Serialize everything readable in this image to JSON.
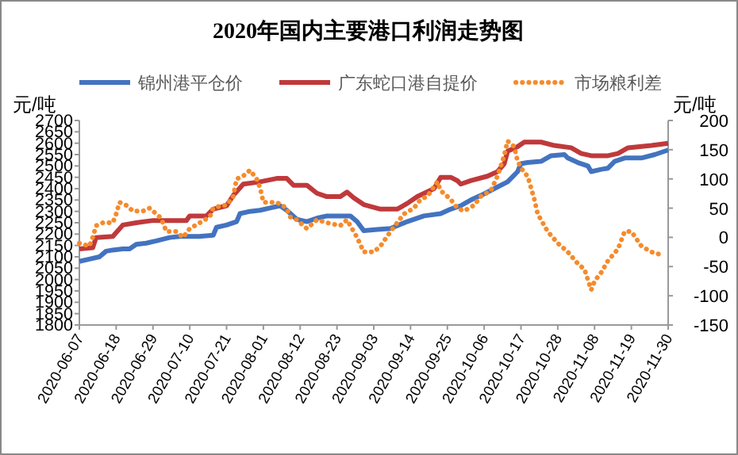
{
  "chart_data": {
    "type": "line",
    "title": "2020年国内主要港口利润走势图",
    "ylabel": "元/吨",
    "y2label": "元/吨",
    "legend": "top",
    "grid": false,
    "xlim": [
      "2020-06-07",
      "2020-11-30"
    ],
    "xticks": [
      "2020-06-07",
      "2020-06-18",
      "2020-06-29",
      "2020-07-10",
      "2020-07-21",
      "2020-08-01",
      "2020-08-12",
      "2020-08-23",
      "2020-09-03",
      "2020-09-14",
      "2020-09-25",
      "2020-10-06",
      "2020-10-17",
      "2020-10-28",
      "2020-11-08",
      "2020-11-19",
      "2020-11-30"
    ],
    "ylim": [
      1800,
      2700
    ],
    "yticks": [
      1800,
      1850,
      1900,
      1950,
      2000,
      2050,
      2100,
      2150,
      2200,
      2250,
      2300,
      2350,
      2400,
      2450,
      2500,
      2550,
      2600,
      2650,
      2700
    ],
    "y2lim": [
      -150,
      200
    ],
    "y2ticks": [
      -150,
      -100,
      -50,
      0,
      50,
      100,
      150,
      200
    ],
    "series": [
      {
        "name": "锦州港平仓价",
        "color": "#4373c0",
        "line_style": "solid",
        "x": [
          "2020-06-07",
          "2020-06-10",
          "2020-06-13",
          "2020-06-15",
          "2020-06-17",
          "2020-06-20",
          "2020-06-22",
          "2020-06-24",
          "2020-06-27",
          "2020-06-30",
          "2020-07-04",
          "2020-07-07",
          "2020-07-13",
          "2020-07-17",
          "2020-07-18",
          "2020-07-21",
          "2020-07-24",
          "2020-07-25",
          "2020-07-28",
          "2020-07-31",
          "2020-08-03",
          "2020-08-06",
          "2020-08-08",
          "2020-08-11",
          "2020-08-14",
          "2020-08-17",
          "2020-08-20",
          "2020-08-24",
          "2020-08-27",
          "2020-08-29",
          "2020-08-31",
          "2020-09-04",
          "2020-09-08",
          "2020-09-13",
          "2020-09-18",
          "2020-09-23",
          "2020-09-26",
          "2020-09-29",
          "2020-10-02",
          "2020-10-05",
          "2020-10-09",
          "2020-10-13",
          "2020-10-16",
          "2020-10-17",
          "2020-10-19",
          "2020-10-23",
          "2020-10-26",
          "2020-10-30",
          "2020-10-31",
          "2020-11-03",
          "2020-11-06",
          "2020-11-07",
          "2020-11-10",
          "2020-11-12",
          "2020-11-14",
          "2020-11-17",
          "2020-11-22",
          "2020-11-26",
          "2020-11-30"
        ],
        "values": [
          2080,
          2090,
          2100,
          2125,
          2130,
          2135,
          2135,
          2155,
          2160,
          2170,
          2185,
          2190,
          2190,
          2195,
          2230,
          2240,
          2255,
          2290,
          2300,
          2305,
          2315,
          2325,
          2305,
          2265,
          2255,
          2270,
          2280,
          2280,
          2280,
          2255,
          2215,
          2220,
          2225,
          2255,
          2280,
          2290,
          2310,
          2325,
          2350,
          2370,
          2400,
          2430,
          2475,
          2510,
          2515,
          2520,
          2545,
          2550,
          2535,
          2515,
          2500,
          2475,
          2485,
          2490,
          2520,
          2535,
          2535,
          2550,
          2570
        ]
      },
      {
        "name": "广东蛇口港自提价",
        "color": "#c0393b",
        "line_style": "solid",
        "x": [
          "2020-06-07",
          "2020-06-11",
          "2020-06-12",
          "2020-06-17",
          "2020-06-20",
          "2020-06-24",
          "2020-06-29",
          "2020-07-04",
          "2020-07-09",
          "2020-07-10",
          "2020-07-15",
          "2020-07-17",
          "2020-07-21",
          "2020-07-23",
          "2020-07-26",
          "2020-07-31",
          "2020-08-05",
          "2020-08-08",
          "2020-08-10",
          "2020-08-14",
          "2020-08-17",
          "2020-08-20",
          "2020-08-24",
          "2020-08-26",
          "2020-08-28",
          "2020-08-31",
          "2020-09-05",
          "2020-09-10",
          "2020-09-13",
          "2020-09-16",
          "2020-09-21",
          "2020-09-23",
          "2020-09-26",
          "2020-09-28",
          "2020-09-29",
          "2020-10-02",
          "2020-10-07",
          "2020-10-10",
          "2020-10-12",
          "2020-10-13",
          "2020-10-16",
          "2020-10-18",
          "2020-10-23",
          "2020-10-27",
          "2020-11-01",
          "2020-11-04",
          "2020-11-07",
          "2020-11-12",
          "2020-11-15",
          "2020-11-18",
          "2020-11-25",
          "2020-11-30"
        ],
        "values": [
          2135,
          2140,
          2185,
          2190,
          2240,
          2250,
          2260,
          2260,
          2260,
          2280,
          2280,
          2310,
          2325,
          2370,
          2420,
          2430,
          2445,
          2445,
          2415,
          2415,
          2380,
          2365,
          2365,
          2385,
          2360,
          2330,
          2310,
          2310,
          2335,
          2365,
          2400,
          2450,
          2450,
          2435,
          2420,
          2435,
          2455,
          2475,
          2510,
          2565,
          2585,
          2605,
          2605,
          2590,
          2580,
          2555,
          2545,
          2545,
          2555,
          2580,
          2590,
          2600
        ]
      },
      {
        "name": "市场粮利差",
        "color": "#f58b2c",
        "line_style": "dotted",
        "axis": "y2",
        "x": [
          "2020-06-07",
          "2020-06-10",
          "2020-06-11",
          "2020-06-12",
          "2020-06-14",
          "2020-06-17",
          "2020-06-18",
          "2020-06-19",
          "2020-06-21",
          "2020-06-23",
          "2020-06-26",
          "2020-06-28",
          "2020-07-01",
          "2020-07-02",
          "2020-07-03",
          "2020-07-06",
          "2020-07-08",
          "2020-07-10",
          "2020-07-13",
          "2020-07-16",
          "2020-07-17",
          "2020-07-20",
          "2020-07-21",
          "2020-07-23",
          "2020-07-24",
          "2020-07-26",
          "2020-07-28",
          "2020-07-30",
          "2020-07-31",
          "2020-08-01",
          "2020-08-05",
          "2020-08-08",
          "2020-08-09",
          "2020-08-11",
          "2020-08-14",
          "2020-08-17",
          "2020-08-20",
          "2020-08-24",
          "2020-08-26",
          "2020-08-27",
          "2020-08-29",
          "2020-08-31",
          "2020-09-03",
          "2020-09-05",
          "2020-09-08",
          "2020-09-10",
          "2020-09-12",
          "2020-09-15",
          "2020-09-17",
          "2020-09-19",
          "2020-09-22",
          "2020-09-23",
          "2020-09-25",
          "2020-09-26",
          "2020-09-28",
          "2020-09-30",
          "2020-10-03",
          "2020-10-05",
          "2020-10-08",
          "2020-10-10",
          "2020-10-12",
          "2020-10-13",
          "2020-10-15",
          "2020-10-16",
          "2020-10-18",
          "2020-10-19",
          "2020-10-21",
          "2020-10-22",
          "2020-10-25",
          "2020-10-28",
          "2020-10-31",
          "2020-11-03",
          "2020-11-05",
          "2020-11-07",
          "2020-11-08",
          "2020-11-10",
          "2020-11-12",
          "2020-11-15",
          "2020-11-17",
          "2020-11-19",
          "2020-11-22",
          "2020-11-25",
          "2020-11-28"
        ],
        "values": [
          -10,
          -15,
          0,
          20,
          25,
          25,
          40,
          60,
          55,
          45,
          45,
          50,
          35,
          25,
          10,
          10,
          0,
          15,
          25,
          35,
          50,
          55,
          55,
          70,
          100,
          105,
          115,
          100,
          85,
          60,
          60,
          50,
          35,
          30,
          15,
          30,
          25,
          20,
          30,
          20,
          0,
          -25,
          -25,
          -15,
          10,
          25,
          40,
          50,
          65,
          70,
          95,
          80,
          70,
          65,
          50,
          45,
          55,
          70,
          80,
          105,
          140,
          165,
          155,
          130,
          110,
          105,
          65,
          40,
          10,
          -10,
          -25,
          -45,
          -55,
          -90,
          -75,
          -60,
          -40,
          -20,
          10,
          10,
          -15,
          -25,
          -30
        ]
      }
    ]
  }
}
